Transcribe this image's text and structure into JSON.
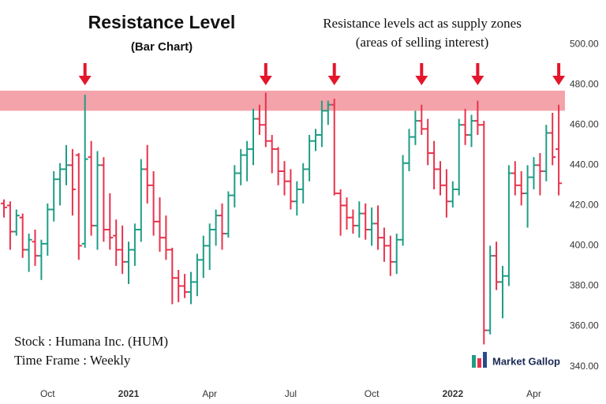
{
  "chart_data": {
    "type": "ohlc",
    "title": "Resistance Level",
    "subtitle": "(Bar Chart)",
    "annotation": [
      "Resistance levels act as supply zones",
      "(areas of selling interest)"
    ],
    "info": [
      "Stock : Humana Inc. (HUM)",
      "Time Frame : Weekly"
    ],
    "brand": "Market Gallop",
    "categories": [
      null,
      null,
      null,
      null,
      null,
      null,
      null,
      "Oct",
      null,
      null,
      null,
      null,
      null,
      null,
      null,
      null,
      null,
      null,
      null,
      null,
      "2021",
      null,
      null,
      null,
      null,
      null,
      null,
      null,
      null,
      null,
      null,
      null,
      null,
      "Apr",
      null,
      null,
      null,
      null,
      null,
      null,
      null,
      null,
      null,
      null,
      null,
      null,
      "Jul",
      null,
      null,
      null,
      null,
      null,
      null,
      null,
      null,
      null,
      null,
      null,
      null,
      "Oct",
      null,
      null,
      null,
      null,
      null,
      null,
      null,
      null,
      null,
      null,
      null,
      null,
      "2022",
      null,
      null,
      null,
      null,
      null,
      null,
      null,
      null,
      null,
      null,
      null,
      null,
      "Apr",
      null,
      null,
      null,
      null
    ],
    "open": [
      421,
      420,
      407,
      414,
      398,
      402,
      395,
      401,
      418,
      433,
      438,
      440,
      445,
      401,
      444,
      410,
      440,
      408,
      405,
      398,
      392,
      398,
      408,
      438,
      430,
      412,
      404,
      398,
      384,
      380,
      377,
      382,
      393,
      400,
      408,
      415,
      406,
      425,
      436,
      445,
      448,
      463,
      460,
      452,
      448,
      437,
      432,
      422,
      428,
      438,
      452,
      455,
      467,
      470,
      426,
      420,
      414,
      410,
      416,
      408,
      411,
      404,
      400,
      392,
      403,
      441,
      454,
      462,
      458,
      446,
      438,
      430,
      422,
      428,
      460,
      455,
      462,
      460,
      358,
      395,
      382,
      385,
      436,
      430,
      426,
      434,
      440,
      437,
      456,
      448
    ],
    "high": [
      423,
      422,
      418,
      416,
      406,
      408,
      403,
      421,
      437,
      441,
      450,
      448,
      446,
      475,
      452,
      447,
      444,
      426,
      413,
      410,
      402,
      411,
      443,
      450,
      437,
      424,
      415,
      399,
      388,
      386,
      387,
      396,
      405,
      411,
      418,
      421,
      427,
      440,
      448,
      452,
      468,
      470,
      476,
      455,
      449,
      442,
      438,
      432,
      441,
      455,
      458,
      472,
      472,
      473,
      428,
      424,
      418,
      422,
      421,
      419,
      420,
      409,
      405,
      406,
      445,
      458,
      467,
      470,
      463,
      452,
      442,
      438,
      432,
      463,
      468,
      465,
      472,
      462,
      400,
      402,
      390,
      440,
      442,
      437,
      440,
      444,
      446,
      460,
      466,
      470
    ],
    "low": [
      414,
      398,
      405,
      394,
      387,
      390,
      383,
      395,
      412,
      420,
      430,
      415,
      393,
      399,
      405,
      398,
      402,
      398,
      390,
      386,
      381,
      390,
      402,
      421,
      405,
      397,
      393,
      371,
      372,
      374,
      371,
      375,
      384,
      388,
      400,
      398,
      404,
      419,
      430,
      432,
      440,
      455,
      449,
      436,
      430,
      425,
      418,
      415,
      421,
      432,
      447,
      449,
      460,
      425,
      405,
      408,
      406,
      404,
      403,
      400,
      398,
      392,
      385,
      386,
      400,
      437,
      450,
      455,
      440,
      428,
      425,
      414,
      419,
      425,
      450,
      449,
      455,
      351,
      356,
      378,
      364,
      380,
      425,
      420,
      409,
      428,
      425,
      432,
      440,
      425
    ],
    "close": [
      419,
      407,
      415,
      398,
      403,
      395,
      401,
      418,
      433,
      438,
      440,
      428,
      400,
      443,
      410,
      440,
      408,
      404,
      398,
      392,
      398,
      408,
      438,
      430,
      412,
      404,
      398,
      384,
      380,
      377,
      382,
      393,
      400,
      408,
      415,
      406,
      425,
      436,
      445,
      448,
      463,
      460,
      452,
      448,
      437,
      432,
      422,
      428,
      438,
      452,
      455,
      467,
      470,
      426,
      420,
      414,
      410,
      416,
      408,
      411,
      404,
      400,
      392,
      403,
      441,
      454,
      462,
      458,
      446,
      438,
      430,
      422,
      428,
      460,
      455,
      462,
      460,
      358,
      395,
      382,
      385,
      436,
      430,
      426,
      434,
      440,
      437,
      456,
      444,
      431
    ],
    "up_color": "#1f9d85",
    "down_color": "#e8324b",
    "resistance_zone": [
      467,
      477
    ],
    "zone_color": "#f4a3aa",
    "arrow_color": "#e3162b",
    "ylim": [
      332,
      522
    ],
    "yticks": [
      {
        "value": 340,
        "label": "340.00"
      },
      {
        "value": 360,
        "label": "360.00"
      },
      {
        "value": 380,
        "label": "380.00"
      },
      {
        "value": 400,
        "label": "400.00"
      },
      {
        "value": 420,
        "label": "420.00"
      },
      {
        "value": 440,
        "label": "440.00"
      },
      {
        "value": 460,
        "label": "460.00"
      },
      {
        "value": 480,
        "label": "480.00"
      },
      {
        "value": 500,
        "label": "500.00"
      }
    ]
  }
}
